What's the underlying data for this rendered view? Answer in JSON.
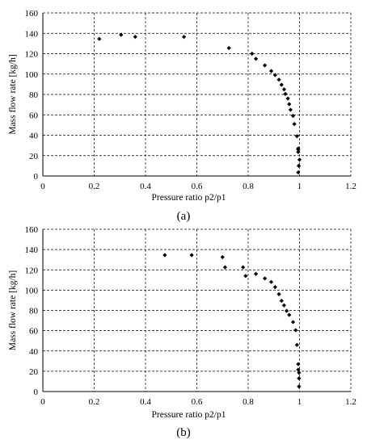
{
  "chart_data": [
    {
      "type": "scatter",
      "panel_label": "(a)",
      "xlabel": "Pressure ratio p2/p1",
      "ylabel": "Mass flow rate [kg/h]",
      "xlim": [
        0,
        1.2
      ],
      "ylim": [
        0,
        160
      ],
      "xticks": [
        "0",
        "0.2",
        "0.4",
        "0.6",
        "0.8",
        "1",
        "1.2"
      ],
      "yticks": [
        "0",
        "20",
        "40",
        "60",
        "80",
        "100",
        "120",
        "140",
        "160"
      ],
      "grid": true,
      "points": [
        [
          0.22,
          134.5
        ],
        [
          0.305,
          138.5
        ],
        [
          0.36,
          136.5
        ],
        [
          0.55,
          136.5
        ],
        [
          0.725,
          125.5
        ],
        [
          0.815,
          120
        ],
        [
          0.83,
          115
        ],
        [
          0.865,
          108.5
        ],
        [
          0.89,
          103
        ],
        [
          0.905,
          99
        ],
        [
          0.92,
          94.5
        ],
        [
          0.93,
          89.5
        ],
        [
          0.94,
          85
        ],
        [
          0.945,
          80.5
        ],
        [
          0.955,
          76
        ],
        [
          0.96,
          70.5
        ],
        [
          0.965,
          65
        ],
        [
          0.975,
          59
        ],
        [
          0.98,
          51
        ],
        [
          0.99,
          39
        ],
        [
          0.995,
          27
        ],
        [
          0.995,
          26
        ],
        [
          0.995,
          23.5
        ],
        [
          1.0,
          16
        ],
        [
          0.997,
          10
        ],
        [
          0.995,
          3.5
        ]
      ]
    },
    {
      "type": "scatter",
      "panel_label": "(b)",
      "xlabel": "Pressure ratio p2/p1",
      "ylabel": "Mass flow rate [kg/h]",
      "xlim": [
        0,
        1.2
      ],
      "ylim": [
        0,
        160
      ],
      "xticks": [
        "0",
        "0.2",
        "0.4",
        "0.6",
        "0.8",
        "1",
        "1.2"
      ],
      "yticks": [
        "0",
        "20",
        "40",
        "60",
        "80",
        "100",
        "120",
        "140",
        "160"
      ],
      "grid": true,
      "points": [
        [
          0.475,
          134.5
        ],
        [
          0.58,
          134.5
        ],
        [
          0.7,
          132.5
        ],
        [
          0.71,
          122.5
        ],
        [
          0.78,
          122.5
        ],
        [
          0.79,
          114
        ],
        [
          0.83,
          116
        ],
        [
          0.865,
          111.5
        ],
        [
          0.89,
          108
        ],
        [
          0.905,
          103
        ],
        [
          0.92,
          96
        ],
        [
          0.93,
          89.5
        ],
        [
          0.94,
          85
        ],
        [
          0.95,
          79.5
        ],
        [
          0.96,
          75.5
        ],
        [
          0.975,
          68.5
        ],
        [
          0.985,
          60.5
        ],
        [
          0.99,
          46
        ],
        [
          0.995,
          27
        ],
        [
          0.995,
          21.5
        ],
        [
          0.998,
          18.5
        ],
        [
          0.998,
          13
        ],
        [
          0.998,
          5
        ]
      ]
    }
  ]
}
